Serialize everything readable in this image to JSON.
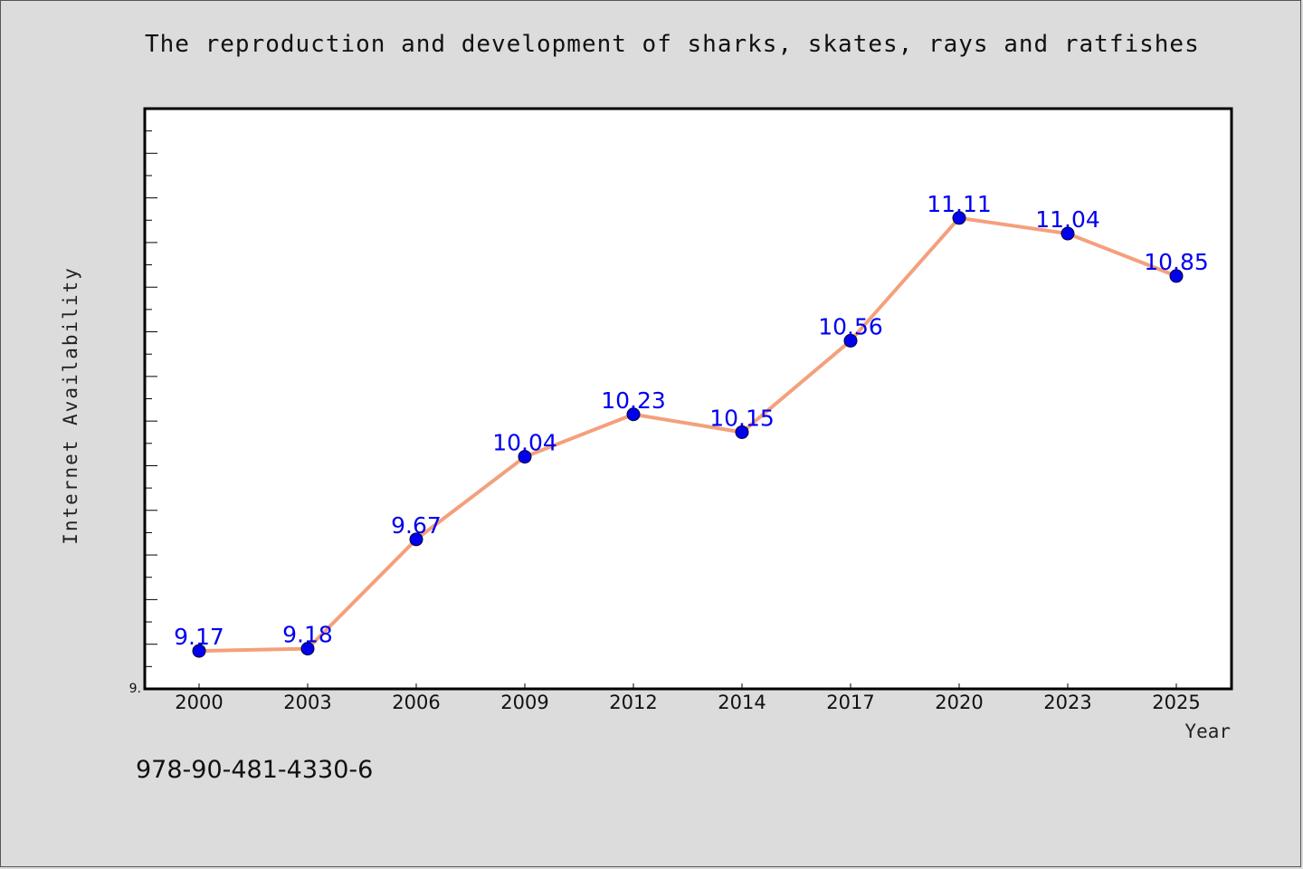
{
  "chart_data": {
    "type": "line",
    "title": "The reproduction and development of sharks, skates, rays and ratfishes",
    "xlabel": "Year",
    "ylabel": "Internet Availability",
    "categories": [
      "2000",
      "2003",
      "2006",
      "2009",
      "2012",
      "2014",
      "2017",
      "2020",
      "2023",
      "2025"
    ],
    "series": [
      {
        "values": [
          9.17,
          9.18,
          9.67,
          10.04,
          10.23,
          10.15,
          10.56,
          11.11,
          11.04,
          10.85
        ],
        "data_labels": [
          "9.17",
          "9.18",
          "9.67",
          "10.04",
          "10.23",
          "10.15",
          "10.56",
          "11.11",
          "11.04",
          "10.85"
        ]
      }
    ],
    "y_tick_labels": [
      "9."
    ],
    "ylim": [
      9.0,
      11.6
    ],
    "grid": false,
    "line_color": "#f4a07c",
    "marker_color": "#0000ee"
  },
  "annotation": {
    "code": "978-90-481-4330-6"
  },
  "colors": {
    "background": "#dcdcdc",
    "plot_background": "#ffffff"
  }
}
